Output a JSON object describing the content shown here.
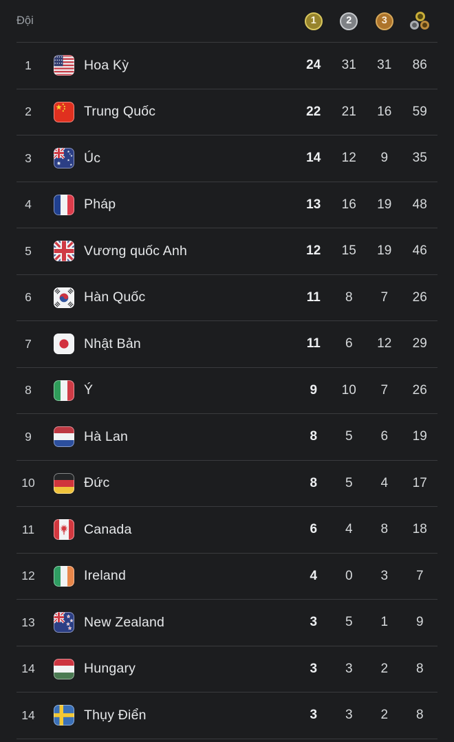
{
  "table": {
    "header": {
      "team_label": "Đội",
      "columns": [
        {
          "id": "gold",
          "symbol": "1",
          "icon": "gold-medal-icon",
          "ring_color": "#d9c75e",
          "fill_color": "#97842c"
        },
        {
          "id": "silver",
          "symbol": "2",
          "icon": "silver-medal-icon",
          "ring_color": "#c6c9cc",
          "fill_color": "#7f8286"
        },
        {
          "id": "bronze",
          "symbol": "3",
          "icon": "bronze-medal-icon",
          "ring_color": "#d7a85a",
          "fill_color": "#ad742b"
        },
        {
          "id": "total",
          "icon": "total-medals-icon"
        }
      ]
    },
    "rows": [
      {
        "rank": "1",
        "flag": "us",
        "country": "Hoa Kỳ",
        "gold": 24,
        "silver": 31,
        "bronze": 31,
        "total": 86
      },
      {
        "rank": "2",
        "flag": "cn",
        "country": "Trung Quốc",
        "gold": 22,
        "silver": 21,
        "bronze": 16,
        "total": 59
      },
      {
        "rank": "3",
        "flag": "au",
        "country": "Úc",
        "gold": 14,
        "silver": 12,
        "bronze": 9,
        "total": 35
      },
      {
        "rank": "4",
        "flag": "fr",
        "country": "Pháp",
        "gold": 13,
        "silver": 16,
        "bronze": 19,
        "total": 48
      },
      {
        "rank": "5",
        "flag": "gb",
        "country": "Vương quốc Anh",
        "gold": 12,
        "silver": 15,
        "bronze": 19,
        "total": 46
      },
      {
        "rank": "6",
        "flag": "kr",
        "country": "Hàn Quốc",
        "gold": 11,
        "silver": 8,
        "bronze": 7,
        "total": 26
      },
      {
        "rank": "7",
        "flag": "jp",
        "country": "Nhật Bản",
        "gold": 11,
        "silver": 6,
        "bronze": 12,
        "total": 29
      },
      {
        "rank": "8",
        "flag": "it",
        "country": "Ý",
        "gold": 9,
        "silver": 10,
        "bronze": 7,
        "total": 26
      },
      {
        "rank": "9",
        "flag": "nl",
        "country": "Hà Lan",
        "gold": 8,
        "silver": 5,
        "bronze": 6,
        "total": 19
      },
      {
        "rank": "10",
        "flag": "de",
        "country": "Đức",
        "gold": 8,
        "silver": 5,
        "bronze": 4,
        "total": 17
      },
      {
        "rank": "11",
        "flag": "ca",
        "country": "Canada",
        "gold": 6,
        "silver": 4,
        "bronze": 8,
        "total": 18
      },
      {
        "rank": "12",
        "flag": "ie",
        "country": "Ireland",
        "gold": 4,
        "silver": 0,
        "bronze": 3,
        "total": 7
      },
      {
        "rank": "13",
        "flag": "nz",
        "country": "New Zealand",
        "gold": 3,
        "silver": 5,
        "bronze": 1,
        "total": 9
      },
      {
        "rank": "14",
        "flag": "hu",
        "country": "Hungary",
        "gold": 3,
        "silver": 3,
        "bronze": 2,
        "total": 8
      },
      {
        "rank": "14",
        "flag": "se",
        "country": "Thụy Điển",
        "gold": 3,
        "silver": 3,
        "bronze": 2,
        "total": 8
      }
    ]
  },
  "colors": {
    "background": "#1c1d1f",
    "divider": "#3a3b3e",
    "text_primary": "#e6e8ea",
    "text_secondary": "#9ba0a5"
  }
}
